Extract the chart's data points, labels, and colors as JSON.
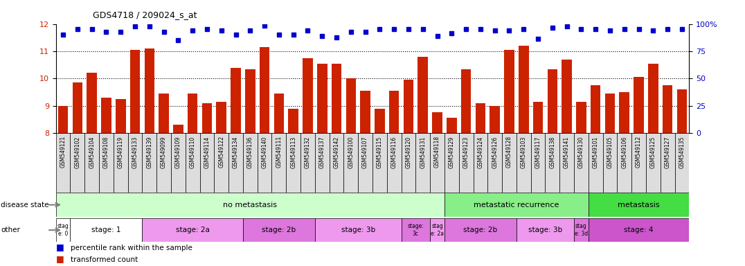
{
  "title": "GDS4718 / 209024_s_at",
  "samples": [
    "GSM549121",
    "GSM549102",
    "GSM549104",
    "GSM549108",
    "GSM549119",
    "GSM549133",
    "GSM549139",
    "GSM549099",
    "GSM549109",
    "GSM549110",
    "GSM549114",
    "GSM549122",
    "GSM549134",
    "GSM549136",
    "GSM549140",
    "GSM549111",
    "GSM549113",
    "GSM549132",
    "GSM549137",
    "GSM549142",
    "GSM549100",
    "GSM549107",
    "GSM549115",
    "GSM549116",
    "GSM549120",
    "GSM549131",
    "GSM549118",
    "GSM549129",
    "GSM549123",
    "GSM549124",
    "GSM549126",
    "GSM549128",
    "GSM549103",
    "GSM549117",
    "GSM549138",
    "GSM549141",
    "GSM549130",
    "GSM549101",
    "GSM549105",
    "GSM549106",
    "GSM549112",
    "GSM549125",
    "GSM549127",
    "GSM549135"
  ],
  "bar_values": [
    9.0,
    9.85,
    10.2,
    9.3,
    9.25,
    11.05,
    11.1,
    9.45,
    8.3,
    9.45,
    9.1,
    9.15,
    10.4,
    10.35,
    11.15,
    9.45,
    8.9,
    10.75,
    10.55,
    10.55,
    10.0,
    9.55,
    8.9,
    9.55,
    9.95,
    10.8,
    8.75,
    8.55,
    10.35,
    9.1,
    9.0,
    11.05,
    11.2,
    9.15,
    10.35,
    10.7,
    9.15,
    9.75,
    9.45,
    9.5,
    10.05,
    10.55,
    9.75,
    9.6
  ],
  "dot_values": [
    11.6,
    11.8,
    11.8,
    11.7,
    11.7,
    11.9,
    11.9,
    11.7,
    11.4,
    11.75,
    11.8,
    11.75,
    11.6,
    11.75,
    11.95,
    11.6,
    11.6,
    11.75,
    11.55,
    11.5,
    11.7,
    11.7,
    11.8,
    11.8,
    11.8,
    11.8,
    11.55,
    11.65,
    11.8,
    11.8,
    11.75,
    11.75,
    11.8,
    11.45,
    11.85,
    11.9,
    11.8,
    11.8,
    11.75,
    11.8,
    11.8,
    11.75,
    11.8,
    11.8
  ],
  "bar_color": "#cc2200",
  "dot_color": "#0000cc",
  "ylim_left": [
    8,
    12
  ],
  "ylim_right": [
    0,
    100
  ],
  "yticks_left": [
    8,
    9,
    10,
    11,
    12
  ],
  "yticks_right": [
    0,
    25,
    50,
    75,
    100
  ],
  "grid_lines": [
    9,
    10,
    11
  ],
  "disease_state_groups": [
    {
      "label": "no metastasis",
      "start": 0,
      "end": 27,
      "color": "#ccffcc"
    },
    {
      "label": "metastatic recurrence",
      "start": 27,
      "end": 37,
      "color": "#88ee88"
    },
    {
      "label": "metastasis",
      "start": 37,
      "end": 44,
      "color": "#44dd44"
    }
  ],
  "stage_groups": [
    {
      "label": "stag\ne: 0",
      "start": 0,
      "end": 1,
      "color": "#ffffff"
    },
    {
      "label": "stage: 1",
      "start": 1,
      "end": 6,
      "color": "#ffffff"
    },
    {
      "label": "stage: 2a",
      "start": 6,
      "end": 13,
      "color": "#ee99ee"
    },
    {
      "label": "stage: 2b",
      "start": 13,
      "end": 18,
      "color": "#dd77dd"
    },
    {
      "label": "stage: 3b",
      "start": 18,
      "end": 24,
      "color": "#ee99ee"
    },
    {
      "label": "stage:\n3c",
      "start": 24,
      "end": 26,
      "color": "#dd77dd"
    },
    {
      "label": "stag\ne: 2a",
      "start": 26,
      "end": 27,
      "color": "#ee99ee"
    },
    {
      "label": "stage: 2b",
      "start": 27,
      "end": 32,
      "color": "#dd77dd"
    },
    {
      "label": "stage: 3b",
      "start": 32,
      "end": 36,
      "color": "#ee99ee"
    },
    {
      "label": "stag\ne: 3d",
      "start": 36,
      "end": 37,
      "color": "#dd77dd"
    },
    {
      "label": "stage: 4",
      "start": 37,
      "end": 44,
      "color": "#cc55cc"
    }
  ],
  "disease_state_label": "disease state",
  "other_label": "other",
  "legend_bar": "transformed count",
  "legend_dot": "percentile rank within the sample",
  "xtick_bg_color": "#dddddd"
}
